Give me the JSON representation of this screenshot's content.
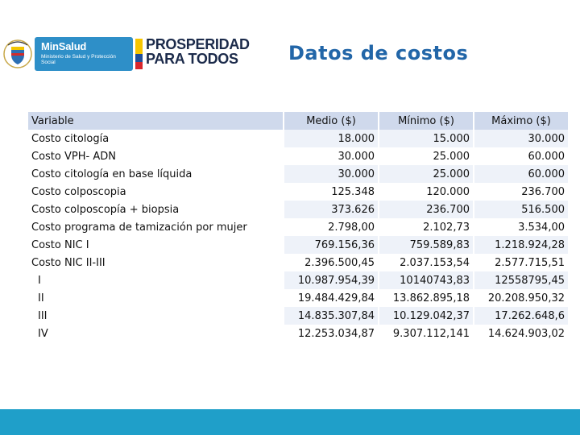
{
  "header": {
    "minsalud_title": "MinSalud",
    "minsalud_subtitle": "Ministerio de Salud y Protección Social",
    "prosperidad_line1": "PROSPERIDAD",
    "prosperidad_line2": "PARA TODOS"
  },
  "title": "Datos de costos",
  "table": {
    "headers": [
      "Variable",
      "Medio ($)",
      "Mínimo ($)",
      "Máximo ($)"
    ],
    "rows": [
      [
        "Costo citología",
        "18.000",
        "15.000",
        "30.000"
      ],
      [
        "Costo VPH- ADN",
        "30.000",
        "25.000",
        "60.000"
      ],
      [
        "Costo citología en base líquida",
        "30.000",
        "25.000",
        "60.000"
      ],
      [
        "Costo colposcopia",
        "125.348",
        "120.000",
        "236.700"
      ],
      [
        "Costo colposcopía + biopsia",
        "373.626",
        "236.700",
        "516.500"
      ],
      [
        "Costo programa de tamización por mujer",
        "2.798,00",
        "2.102,73",
        "3.534,00"
      ],
      [
        "Costo NIC I",
        "769.156,36",
        "759.589,83",
        "1.218.924,28"
      ],
      [
        "Costo NIC II-III",
        "2.396.500,45",
        "2.037.153,54",
        "2.577.715,51"
      ],
      [
        "I",
        "10.987.954,39",
        "10140743,83",
        "12558795,45"
      ],
      [
        "II",
        "19.484.429,84",
        "13.862.895,18",
        "20.208.950,32"
      ],
      [
        "III",
        "14.835.307,84",
        "10.129.042,37",
        "17.262.648,6"
      ],
      [
        "IV",
        "12.253.034,87",
        "9.307.112,141",
        "14.624.903,02"
      ]
    ]
  },
  "colors": {
    "title": "#2266a8",
    "header_cell": "#cfd9ec",
    "stripe": "#eef2f9",
    "footer": "#1f9fc9",
    "minsalud": "#2e8fc8"
  }
}
